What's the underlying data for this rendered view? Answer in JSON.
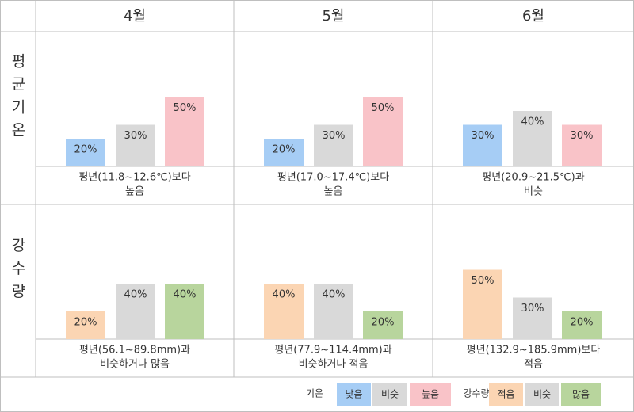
{
  "columns": [
    "4월",
    "5월",
    "6월"
  ],
  "rows": [
    "평균기온",
    "강수량"
  ],
  "chart_data": [
    {
      "type": "bar",
      "values": [
        20,
        30,
        50
      ],
      "value_labels": [
        "20%",
        "30%",
        "50%"
      ],
      "colors": [
        "#a6cdf5",
        "#d9d9d9",
        "#f9c3c8"
      ],
      "caption": [
        "평년(11.8~12.6℃)보다",
        "높음"
      ]
    },
    {
      "type": "bar",
      "values": [
        20,
        30,
        50
      ],
      "value_labels": [
        "20%",
        "30%",
        "50%"
      ],
      "colors": [
        "#a6cdf5",
        "#d9d9d9",
        "#f9c3c8"
      ],
      "caption": [
        "평년(17.0~17.4℃)보다",
        "높음"
      ]
    },
    {
      "type": "bar",
      "values": [
        30,
        40,
        30
      ],
      "value_labels": [
        "30%",
        "40%",
        "30%"
      ],
      "colors": [
        "#a6cdf5",
        "#d9d9d9",
        "#f9c3c8"
      ],
      "caption": [
        "평년(20.9~21.5℃)과",
        "비슷"
      ]
    },
    {
      "type": "bar",
      "values": [
        20,
        40,
        40
      ],
      "value_labels": [
        "20%",
        "40%",
        "40%"
      ],
      "colors": [
        "#fbd5b3",
        "#d9d9d9",
        "#b8d59d"
      ],
      "caption": [
        "평년(56.1~89.8mm)과",
        "비슷하거나 많음"
      ]
    },
    {
      "type": "bar",
      "values": [
        40,
        40,
        20
      ],
      "value_labels": [
        "40%",
        "40%",
        "20%"
      ],
      "colors": [
        "#fbd5b3",
        "#d9d9d9",
        "#b8d59d"
      ],
      "caption": [
        "평년(77.9~114.4mm)과",
        "비슷하거나 적음"
      ]
    },
    {
      "type": "bar",
      "values": [
        50,
        30,
        20
      ],
      "value_labels": [
        "50%",
        "30%",
        "20%"
      ],
      "colors": [
        "#fbd5b3",
        "#d9d9d9",
        "#b8d59d"
      ],
      "caption": [
        "평년(132.9~185.9mm)보다",
        "적음"
      ]
    }
  ],
  "legend": [
    {
      "title": "기온",
      "items": [
        {
          "label": "낮음",
          "color": "#a6cdf5"
        },
        {
          "label": "비슷",
          "color": "#d9d9d9"
        },
        {
          "label": "높음",
          "color": "#f9c3c8"
        }
      ]
    },
    {
      "title": "강수량",
      "items": [
        {
          "label": "적음",
          "color": "#fbd5b3"
        },
        {
          "label": "비슷",
          "color": "#d9d9d9"
        },
        {
          "label": "많음",
          "color": "#b8d59d"
        }
      ]
    }
  ]
}
